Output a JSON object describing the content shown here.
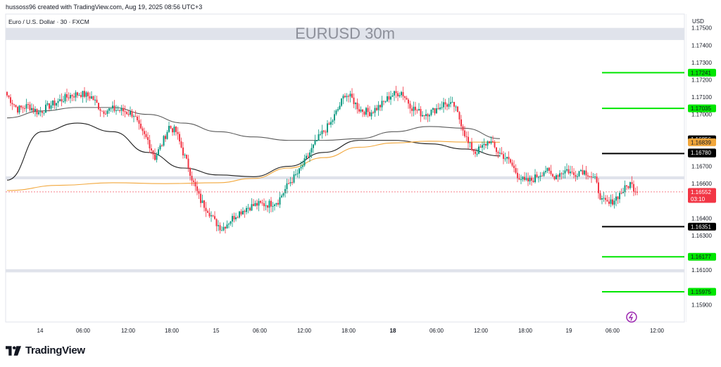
{
  "header": {
    "credit": "hussoss96 created with TradingView.com, Aug 19, 2025 08:56 UTC+3"
  },
  "footer": {
    "brand": "TradingView"
  },
  "colors": {
    "up": "#089981",
    "down": "#f23645",
    "ma_dark": "#1e1e1e",
    "ma_light": "#5a5a5a",
    "ma_orange": "#f2a73b",
    "zone": "#e0e3eb",
    "green_line": "#00e600",
    "black_line": "#000000"
  },
  "chart_data": {
    "type": "candlestick",
    "title": "EURUSD 30m",
    "symbol_info": "Euro / U.S. Dollar · 30 · FXCM",
    "currency": "USD",
    "ylim": [
      1.158,
      1.1758
    ],
    "y_ticks": [
      "1.17500",
      "1.17400",
      "1.17300",
      "1.17200",
      "1.17100",
      "1.17000",
      "1.16700",
      "1.16600",
      "1.16400",
      "1.16300",
      "1.16100",
      "1.15900"
    ],
    "x_ticks": [
      "14",
      "06:00",
      "12:00",
      "18:00",
      "15",
      "06:00",
      "12:00",
      "18:00",
      "18",
      "06:00",
      "12:00",
      "18:00",
      "19",
      "06:00",
      "12:00"
    ],
    "x_ticks_bold": [
      "18"
    ],
    "zones": [
      {
        "from": 1.1743,
        "to": 1.175
      },
      {
        "from": 1.16625,
        "to": 1.16642
      },
      {
        "from": 1.16087,
        "to": 1.16105
      }
    ],
    "levels": [
      {
        "value": 1.17241,
        "label": "1.17241",
        "color": "#00e600"
      },
      {
        "value": 1.17035,
        "label": "1.17035",
        "color": "#00e600"
      },
      {
        "value": 1.16774,
        "label": "1.16774",
        "color": "#000000"
      },
      {
        "value": 1.16351,
        "label": "1.16351",
        "color": "#000000"
      },
      {
        "value": 1.16177,
        "label": "1.16177",
        "color": "#00e600"
      },
      {
        "value": 1.15975,
        "label": "1.15975",
        "color": "#00e600"
      }
    ],
    "price_badges": [
      {
        "value": 1.16856,
        "label": "1.16856",
        "bg": "#000000",
        "fg": "#ffffff"
      },
      {
        "value": 1.16839,
        "label": "1.16839",
        "bg": "#f2a73b",
        "fg": "#131722"
      },
      {
        "value": 1.1678,
        "label": "1.16780",
        "bg": "#000000",
        "fg": "#ffffff"
      }
    ],
    "current_price": {
      "value": 1.16552,
      "label": "1.16552",
      "countdown": "03:10"
    },
    "series": [
      {
        "name": "MA slow",
        "color": "#5a5a5a",
        "values": [
          [
            0,
            1.1698
          ],
          [
            20,
            1.1702
          ],
          [
            40,
            1.1704
          ],
          [
            60,
            1.1704
          ],
          [
            80,
            1.17
          ],
          [
            100,
            1.1695
          ],
          [
            120,
            1.169
          ],
          [
            140,
            1.1687
          ],
          [
            160,
            1.1685
          ],
          [
            180,
            1.1685
          ],
          [
            200,
            1.1686
          ],
          [
            220,
            1.169
          ],
          [
            240,
            1.1693
          ],
          [
            260,
            1.1692
          ],
          [
            280,
            1.1686
          ]
        ]
      },
      {
        "name": "MA medium",
        "color": "#1e1e1e",
        "values": [
          [
            0,
            1.1662
          ],
          [
            20,
            1.169
          ],
          [
            40,
            1.1695
          ],
          [
            60,
            1.169
          ],
          [
            80,
            1.1678
          ],
          [
            100,
            1.1669
          ],
          [
            120,
            1.1665
          ],
          [
            140,
            1.1664
          ],
          [
            160,
            1.167
          ],
          [
            180,
            1.1678
          ],
          [
            200,
            1.1685
          ],
          [
            220,
            1.1685
          ],
          [
            240,
            1.1683
          ],
          [
            260,
            1.168
          ],
          [
            280,
            1.1676
          ]
        ]
      },
      {
        "name": "MA long",
        "color": "#f2a73b",
        "values": [
          [
            0,
            1.1656
          ],
          [
            30,
            1.1659
          ],
          [
            60,
            1.16605
          ],
          [
            90,
            1.166
          ],
          [
            120,
            1.16605
          ],
          [
            140,
            1.1663
          ],
          [
            160,
            1.1669
          ],
          [
            180,
            1.1675
          ],
          [
            200,
            1.1681
          ],
          [
            220,
            1.16835
          ],
          [
            240,
            1.16845
          ],
          [
            260,
            1.1684
          ],
          [
            280,
            1.16839
          ]
        ]
      }
    ],
    "ohlc_keypoints": [
      [
        0,
        1.1711
      ],
      [
        6,
        1.1703
      ],
      [
        12,
        1.1705
      ],
      [
        18,
        1.1701
      ],
      [
        24,
        1.1705
      ],
      [
        30,
        1.1708
      ],
      [
        36,
        1.1711
      ],
      [
        42,
        1.1712
      ],
      [
        48,
        1.171
      ],
      [
        54,
        1.1702
      ],
      [
        60,
        1.1703
      ],
      [
        66,
        1.1702
      ],
      [
        72,
        1.17
      ],
      [
        76,
        1.169
      ],
      [
        80,
        1.1685
      ],
      [
        84,
        1.1675
      ],
      [
        88,
        1.1683
      ],
      [
        92,
        1.1693
      ],
      [
        96,
        1.169
      ],
      [
        100,
        1.1678
      ],
      [
        103,
        1.167
      ],
      [
        106,
        1.166
      ],
      [
        110,
        1.165
      ],
      [
        114,
        1.1645
      ],
      [
        118,
        1.1638
      ],
      [
        122,
        1.1634
      ],
      [
        126,
        1.1638
      ],
      [
        130,
        1.1642
      ],
      [
        136,
        1.1646
      ],
      [
        142,
        1.1648
      ],
      [
        148,
        1.1648
      ],
      [
        154,
        1.165
      ],
      [
        160,
        1.166
      ],
      [
        166,
        1.1667
      ],
      [
        172,
        1.1678
      ],
      [
        178,
        1.1688
      ],
      [
        184,
        1.1695
      ],
      [
        188,
        1.1703
      ],
      [
        192,
        1.1712
      ],
      [
        196,
        1.1709
      ],
      [
        200,
        1.1703
      ],
      [
        206,
        1.1701
      ],
      [
        212,
        1.1705
      ],
      [
        218,
        1.1711
      ],
      [
        224,
        1.1713
      ],
      [
        230,
        1.1704
      ],
      [
        236,
        1.17
      ],
      [
        242,
        1.1702
      ],
      [
        248,
        1.1706
      ],
      [
        254,
        1.1705
      ],
      [
        258,
        1.1695
      ],
      [
        262,
        1.1683
      ],
      [
        266,
        1.1678
      ],
      [
        270,
        1.1681
      ],
      [
        274,
        1.1685
      ],
      [
        278,
        1.1679
      ],
      [
        282,
        1.1676
      ],
      [
        286,
        1.1672
      ],
      [
        290,
        1.1665
      ],
      [
        294,
        1.1661
      ],
      [
        298,
        1.1662
      ],
      [
        302,
        1.1665
      ],
      [
        306,
        1.1668
      ],
      [
        310,
        1.1664
      ],
      [
        314,
        1.1666
      ],
      [
        318,
        1.1668
      ],
      [
        322,
        1.1665
      ],
      [
        326,
        1.1668
      ],
      [
        330,
        1.1666
      ],
      [
        334,
        1.1662
      ],
      [
        338,
        1.165
      ],
      [
        342,
        1.1648
      ],
      [
        346,
        1.1652
      ],
      [
        350,
        1.1656
      ],
      [
        354,
        1.166
      ],
      [
        358,
        1.16552
      ]
    ]
  }
}
